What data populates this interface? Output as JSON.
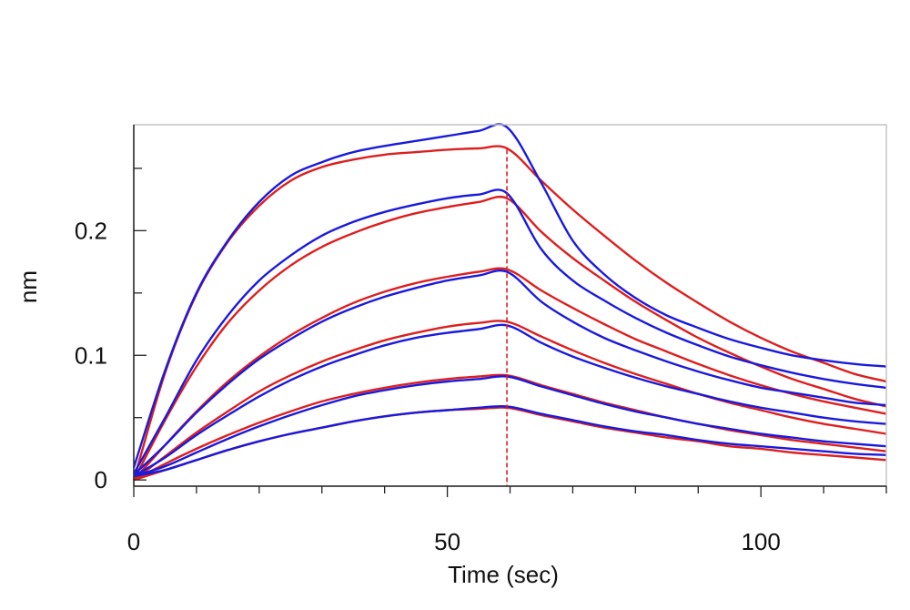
{
  "chart_data": {
    "type": "line",
    "title": "",
    "xlabel": "Time (sec)",
    "ylabel": "nm",
    "xlim": [
      0,
      120
    ],
    "ylim": [
      -0.005,
      0.285
    ],
    "x_ticks": [
      0,
      50,
      100
    ],
    "x_tick_labels": [
      "0",
      "50",
      "100"
    ],
    "x_minor_step": 10,
    "y_ticks": [
      0,
      0.1,
      0.2
    ],
    "y_tick_labels": [
      "0",
      "0.1",
      "0.2"
    ],
    "y_minor_step": 0.05,
    "grid": false,
    "legend": "none",
    "colors": {
      "measured": "#1a1adc",
      "fit": "#dd1f1f",
      "frame": "#c4c4c4",
      "axis": "#222222"
    },
    "association_end": 59.5,
    "curve_samples": [
      0,
      5,
      10,
      15,
      20,
      25,
      30,
      35,
      40,
      45,
      50,
      55,
      59.5,
      65,
      70,
      75,
      80,
      85,
      90,
      95,
      100,
      105,
      110,
      115,
      120
    ],
    "series": [
      {
        "role": "fit",
        "values": [
          0,
          0.086,
          0.149,
          0.191,
          0.22,
          0.24,
          0.251,
          0.257,
          0.261,
          0.263,
          0.265,
          0.266,
          0.266,
          0.24,
          0.217,
          0.196,
          0.176,
          0.158,
          0.142,
          0.127,
          0.114,
          0.103,
          0.094,
          0.085,
          0.079
        ]
      },
      {
        "role": "measured",
        "values": [
          0.01,
          0.088,
          0.15,
          0.192,
          0.223,
          0.244,
          0.255,
          0.263,
          0.268,
          0.272,
          0.276,
          0.28,
          0.283,
          0.238,
          0.192,
          0.165,
          0.146,
          0.132,
          0.122,
          0.113,
          0.106,
          0.1,
          0.096,
          0.093,
          0.091
        ]
      },
      {
        "role": "fit",
        "values": [
          0,
          0.048,
          0.091,
          0.126,
          0.152,
          0.172,
          0.187,
          0.198,
          0.207,
          0.214,
          0.219,
          0.223,
          0.226,
          0.199,
          0.178,
          0.16,
          0.143,
          0.128,
          0.114,
          0.102,
          0.091,
          0.081,
          0.073,
          0.065,
          0.059
        ]
      },
      {
        "role": "measured",
        "values": [
          0.005,
          0.05,
          0.096,
          0.132,
          0.16,
          0.18,
          0.196,
          0.207,
          0.215,
          0.221,
          0.226,
          0.229,
          0.23,
          0.185,
          0.16,
          0.144,
          0.13,
          0.118,
          0.108,
          0.099,
          0.092,
          0.086,
          0.081,
          0.077,
          0.074
        ]
      },
      {
        "role": "fit",
        "values": [
          0,
          0.028,
          0.055,
          0.079,
          0.099,
          0.116,
          0.13,
          0.142,
          0.151,
          0.158,
          0.163,
          0.167,
          0.169,
          0.152,
          0.138,
          0.125,
          0.113,
          0.103,
          0.093,
          0.084,
          0.076,
          0.069,
          0.063,
          0.058,
          0.053
        ]
      },
      {
        "role": "measured",
        "values": [
          0.004,
          0.028,
          0.054,
          0.077,
          0.097,
          0.113,
          0.127,
          0.138,
          0.147,
          0.154,
          0.16,
          0.164,
          0.167,
          0.143,
          0.127,
          0.114,
          0.104,
          0.095,
          0.087,
          0.08,
          0.074,
          0.07,
          0.066,
          0.062,
          0.06
        ]
      },
      {
        "role": "fit",
        "values": [
          0,
          0.019,
          0.038,
          0.055,
          0.071,
          0.084,
          0.095,
          0.104,
          0.112,
          0.118,
          0.123,
          0.126,
          0.127,
          0.115,
          0.104,
          0.094,
          0.085,
          0.077,
          0.069,
          0.062,
          0.056,
          0.05,
          0.045,
          0.041,
          0.037
        ]
      },
      {
        "role": "measured",
        "values": [
          0.003,
          0.018,
          0.036,
          0.052,
          0.067,
          0.08,
          0.091,
          0.1,
          0.108,
          0.114,
          0.118,
          0.121,
          0.124,
          0.11,
          0.099,
          0.09,
          0.082,
          0.075,
          0.069,
          0.063,
          0.058,
          0.054,
          0.05,
          0.047,
          0.045
        ]
      },
      {
        "role": "fit",
        "values": [
          0,
          0.013,
          0.025,
          0.036,
          0.046,
          0.055,
          0.063,
          0.069,
          0.074,
          0.078,
          0.081,
          0.083,
          0.084,
          0.076,
          0.069,
          0.062,
          0.056,
          0.05,
          0.045,
          0.04,
          0.036,
          0.032,
          0.029,
          0.026,
          0.023
        ]
      },
      {
        "role": "measured",
        "values": [
          0.003,
          0.011,
          0.022,
          0.033,
          0.043,
          0.052,
          0.06,
          0.067,
          0.072,
          0.076,
          0.079,
          0.081,
          0.083,
          0.075,
          0.068,
          0.061,
          0.055,
          0.05,
          0.045,
          0.041,
          0.037,
          0.034,
          0.031,
          0.029,
          0.027
        ]
      },
      {
        "role": "fit",
        "values": [
          0,
          0.008,
          0.016,
          0.024,
          0.031,
          0.037,
          0.042,
          0.047,
          0.051,
          0.054,
          0.056,
          0.057,
          0.058,
          0.052,
          0.047,
          0.042,
          0.038,
          0.034,
          0.031,
          0.027,
          0.025,
          0.022,
          0.02,
          0.018,
          0.016
        ]
      },
      {
        "role": "measured",
        "values": [
          0.003,
          0.008,
          0.016,
          0.024,
          0.031,
          0.037,
          0.042,
          0.047,
          0.051,
          0.054,
          0.056,
          0.058,
          0.059,
          0.053,
          0.048,
          0.043,
          0.039,
          0.036,
          0.032,
          0.029,
          0.027,
          0.025,
          0.023,
          0.021,
          0.02
        ]
      }
    ]
  }
}
